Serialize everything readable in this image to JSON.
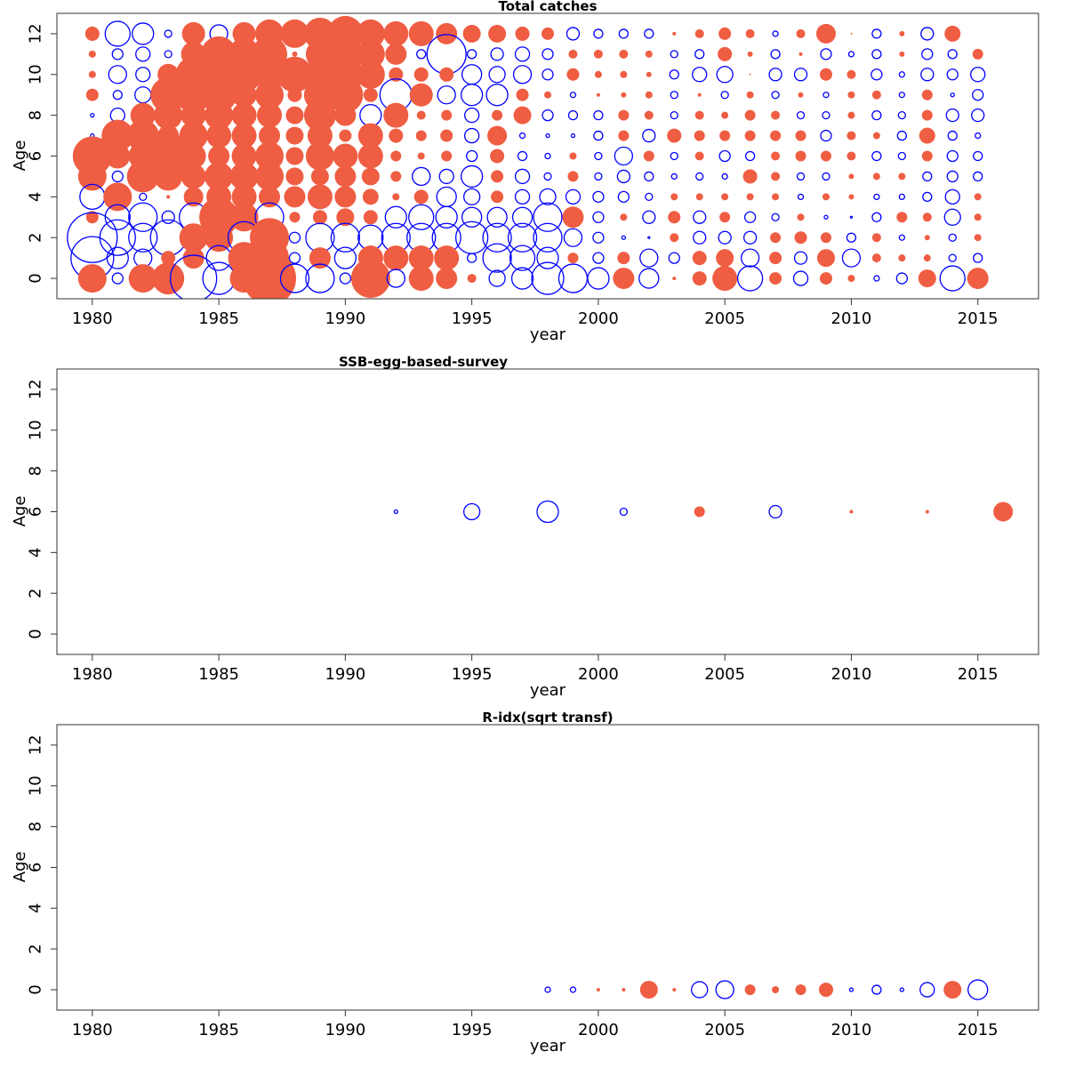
{
  "chart_data": [
    {
      "type": "bubble",
      "title": "Total catches",
      "xlabel": "year",
      "ylabel": "Age",
      "xlim": [
        1978.6,
        2017.4
      ],
      "ylim": [
        -1,
        13
      ],
      "xticks": [
        1980,
        1985,
        1990,
        1995,
        2000,
        2005,
        2010,
        2015
      ],
      "yticks": [
        0,
        2,
        4,
        6,
        8,
        10,
        12
      ],
      "positive_color": "#ef5d42",
      "negative_color": "#0000ff",
      "x": [
        1980,
        1981,
        1982,
        1983,
        1984,
        1985,
        1986,
        1987,
        1988,
        1989,
        1990,
        1991,
        1992,
        1993,
        1994,
        1995,
        1996,
        1997,
        1998,
        1999,
        2000,
        2001,
        2002,
        2003,
        2004,
        2005,
        2006,
        2007,
        2008,
        2009,
        2010,
        2011,
        2012,
        2013,
        2014,
        2015
      ],
      "ages": [
        12,
        11,
        10,
        9,
        8,
        7,
        6,
        5,
        4,
        3,
        2,
        1,
        0
      ],
      "values": [
        [
          0.8,
          -1.4,
          -1.2,
          -0.4,
          1.3,
          -1.0,
          1.3,
          1.6,
          1.6,
          1.8,
          2.0,
          1.6,
          1.4,
          1.4,
          1.2,
          1.0,
          1.0,
          0.8,
          0.7,
          -0.7,
          -0.5,
          -0.5,
          -0.5,
          0.2,
          0.5,
          0.7,
          0.5,
          -0.3,
          0.5,
          1.1,
          0.1,
          -0.5,
          0.3,
          -0.7,
          0.9,
          null
        ],
        [
          0.4,
          -0.6,
          -0.8,
          -0.4,
          1.4,
          2.0,
          1.8,
          2.0,
          0.3,
          1.6,
          2.0,
          1.6,
          1.2,
          -0.5,
          -2.2,
          -0.5,
          -0.7,
          -0.8,
          -0.6,
          0.5,
          0.5,
          0.5,
          0.4,
          -0.4,
          -0.5,
          0.8,
          0.3,
          -0.5,
          0.2,
          -0.6,
          -0.3,
          -0.5,
          0.3,
          -0.6,
          -0.5,
          0.6
        ],
        [
          0.4,
          -1.0,
          -0.8,
          1.2,
          2.0,
          2.4,
          2.0,
          1.8,
          2.0,
          1.8,
          2.0,
          1.6,
          0.8,
          0.8,
          0.8,
          -1.1,
          -0.9,
          -1.0,
          -0.6,
          0.7,
          0.4,
          0.4,
          0.3,
          -0.5,
          -0.8,
          -0.9,
          0.1,
          -0.7,
          -0.7,
          0.7,
          0.5,
          -0.6,
          -0.3,
          -0.7,
          -0.6,
          -0.8
        ],
        [
          0.7,
          -0.5,
          -0.9,
          2.0,
          2.0,
          2.0,
          1.4,
          1.6,
          0.8,
          1.8,
          2.0,
          0.8,
          -1.8,
          1.3,
          -1.0,
          -1.2,
          -1.2,
          0.7,
          0.4,
          -0.3,
          0.2,
          0.3,
          0.4,
          -0.4,
          0.2,
          -0.4,
          0.4,
          -0.4,
          0.3,
          -0.3,
          0.4,
          0.5,
          -0.3,
          0.6,
          -0.2,
          -0.6
        ],
        [
          -0.2,
          -0.8,
          1.4,
          1.6,
          1.4,
          1.6,
          1.4,
          1.4,
          1.0,
          1.8,
          1.2,
          -1.2,
          1.4,
          0.5,
          0.6,
          -0.8,
          0.6,
          1.0,
          -0.6,
          -0.5,
          -0.5,
          0.6,
          0.5,
          -0.4,
          0.5,
          0.4,
          0.6,
          0.5,
          -0.4,
          -0.4,
          0.4,
          -0.5,
          -0.4,
          0.6,
          -0.7,
          -0.7
        ],
        [
          -0.2,
          1.8,
          1.8,
          1.2,
          1.6,
          1.4,
          1.4,
          1.2,
          1.0,
          1.4,
          0.7,
          1.4,
          0.8,
          0.6,
          0.7,
          -0.8,
          1.1,
          -0.3,
          -0.2,
          -0.2,
          -0.5,
          0.6,
          -0.7,
          0.8,
          0.6,
          0.6,
          0.6,
          0.6,
          0.6,
          -0.6,
          0.5,
          0.4,
          -0.5,
          0.9,
          -0.5,
          -0.3
        ],
        [
          2.2,
          1.4,
          1.6,
          2.6,
          1.4,
          1.2,
          1.4,
          1.6,
          1.0,
          1.6,
          1.4,
          1.4,
          0.6,
          0.4,
          0.6,
          -0.6,
          0.8,
          -0.5,
          -0.3,
          0.4,
          -0.4,
          -1.0,
          0.6,
          -0.4,
          0.5,
          -0.6,
          -0.5,
          0.5,
          0.6,
          0.6,
          0.5,
          -0.5,
          -0.4,
          0.6,
          -0.6,
          -0.5
        ],
        [
          1.6,
          -0.6,
          1.8,
          1.6,
          1.4,
          1.6,
          1.6,
          1.6,
          1.0,
          1.0,
          1.2,
          1.0,
          0.6,
          -1.0,
          -0.8,
          -1.2,
          0.7,
          -0.8,
          -0.4,
          0.6,
          -0.4,
          -0.7,
          -0.5,
          -0.3,
          -0.4,
          -0.3,
          0.8,
          0.5,
          -0.4,
          -0.4,
          0.3,
          0.4,
          0.4,
          -0.5,
          -0.6,
          -0.5
        ],
        [
          -1.4,
          1.6,
          -0.4,
          0.2,
          1.1,
          1.4,
          1.4,
          1.2,
          1.2,
          1.4,
          1.2,
          0.9,
          0.4,
          0.8,
          -1.1,
          -0.9,
          0.7,
          -0.8,
          -0.9,
          -0.8,
          -0.6,
          -0.6,
          -0.4,
          0.4,
          0.4,
          0.4,
          0.4,
          0.4,
          -0.3,
          0.4,
          0.3,
          -0.3,
          -0.3,
          -0.5,
          -0.8,
          0.4
        ],
        [
          0.7,
          -1.4,
          -1.6,
          -0.7,
          -1.6,
          2.2,
          1.6,
          -1.6,
          0.6,
          0.8,
          1.0,
          0.8,
          -1.2,
          -1.4,
          -1.2,
          -1.1,
          -1.1,
          -1.1,
          -1.6,
          1.2,
          -0.6,
          0.4,
          -0.7,
          0.7,
          -0.7,
          0.6,
          -0.6,
          -0.4,
          0.4,
          -0.2,
          -0.1,
          -0.5,
          0.6,
          0.5,
          -0.9,
          0.4
        ],
        [
          -2.8,
          -2.0,
          -1.6,
          -2.0,
          1.6,
          1.6,
          -1.8,
          2.2,
          -0.6,
          -1.6,
          -1.6,
          -1.4,
          -1.6,
          -1.6,
          -1.6,
          -1.8,
          -1.6,
          -1.6,
          -1.6,
          -1.0,
          -0.6,
          -0.2,
          -0.1,
          0.5,
          -0.7,
          -0.7,
          -0.7,
          0.6,
          0.7,
          0.6,
          -0.5,
          0.5,
          -0.3,
          0.3,
          -0.4,
          0.4
        ],
        [
          -2.4,
          -1.2,
          -1.0,
          0.8,
          1.2,
          -1.4,
          1.8,
          2.2,
          -0.6,
          1.2,
          -1.2,
          1.4,
          1.4,
          1.4,
          1.4,
          -0.5,
          -1.6,
          -1.4,
          -1.2,
          0.6,
          -0.6,
          0.7,
          -1.0,
          -0.6,
          0.8,
          1.0,
          -1.0,
          0.7,
          -0.7,
          1.0,
          -1.0,
          0.5,
          0.4,
          0.4,
          -0.4,
          -0.5
        ],
        [
          1.6,
          -0.6,
          1.6,
          1.8,
          -2.6,
          -1.8,
          1.6,
          3.0,
          -1.6,
          -1.6,
          -0.6,
          2.2,
          -1.0,
          1.4,
          1.2,
          0.5,
          -0.9,
          -1.2,
          -1.8,
          -1.6,
          -1.2,
          1.2,
          -1.1,
          0.2,
          0.8,
          1.4,
          -1.4,
          0.7,
          -0.8,
          0.7,
          0.4,
          -0.3,
          -0.6,
          1.0,
          -1.4,
          1.2
        ]
      ]
    },
    {
      "type": "bubble",
      "title": "SSB-egg-based-survey",
      "xlabel": "year",
      "ylabel": "Age",
      "xlim": [
        1978.6,
        2017.4
      ],
      "ylim": [
        -1,
        13
      ],
      "xticks": [
        1980,
        1985,
        1990,
        1995,
        2000,
        2005,
        2010,
        2015
      ],
      "yticks": [
        0,
        2,
        4,
        6,
        8,
        10,
        12
      ],
      "positive_color": "#ef5d42",
      "negative_color": "#0000ff",
      "x": [
        1992,
        1995,
        1998,
        2001,
        2004,
        2007,
        2010,
        2013,
        2016
      ],
      "ages": [
        6
      ],
      "values": [
        [
          -0.2,
          -0.9,
          -1.2,
          -0.4,
          0.6,
          -0.7,
          0.2,
          0.2,
          1.1
        ]
      ]
    },
    {
      "type": "bubble",
      "title": "R-idx(sqrt transf)",
      "xlabel": "year",
      "ylabel": "Age",
      "xlim": [
        1978.6,
        2017.4
      ],
      "ylim": [
        -1,
        13
      ],
      "xticks": [
        1980,
        1985,
        1990,
        1995,
        2000,
        2005,
        2010,
        2015
      ],
      "yticks": [
        0,
        2,
        4,
        6,
        8,
        10,
        12
      ],
      "positive_color": "#ef5d42",
      "negative_color": "#0000ff",
      "x": [
        1998,
        1999,
        2000,
        2001,
        2002,
        2003,
        2004,
        2005,
        2006,
        2007,
        2008,
        2009,
        2010,
        2011,
        2012,
        2013,
        2014,
        2015
      ],
      "ages": [
        0
      ],
      "values": [
        [
          -0.3,
          -0.3,
          0.2,
          0.2,
          1.0,
          0.2,
          -0.9,
          -1.0,
          0.6,
          0.4,
          0.6,
          0.8,
          -0.2,
          -0.5,
          -0.2,
          -0.8,
          1.0,
          -1.1
        ]
      ]
    }
  ]
}
